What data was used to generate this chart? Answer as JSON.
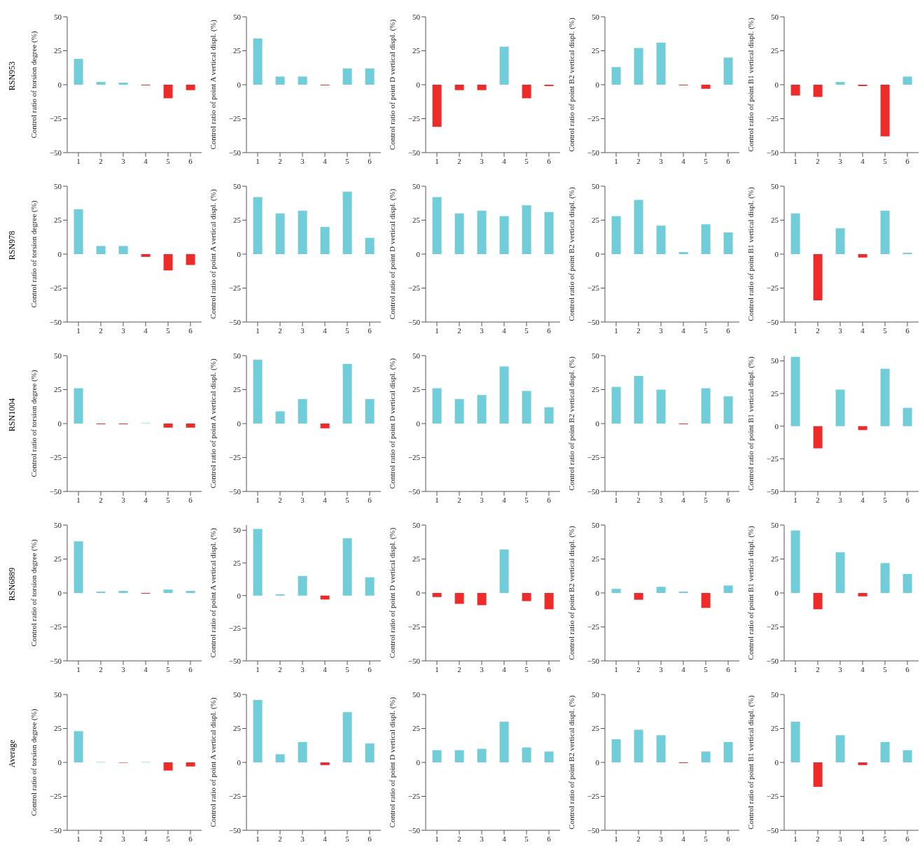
{
  "chart_data": [
    {
      "type": "bar",
      "annotations": [
        "RSN953"
      ],
      "ylabel": "Control ratio of torsion degree (%)",
      "categories": [
        "1",
        "2",
        "3",
        "4",
        "5",
        "6"
      ],
      "values": [
        19,
        2,
        1.5,
        -0.5,
        -10,
        -4
      ],
      "colors": [
        "#70cdd9",
        "#70cdd9",
        "#70cdd9",
        "#ee2b2b",
        "#ee2b2b",
        "#ee2b2b"
      ],
      "ylim": [
        -50,
        50
      ],
      "yticks": [
        -50,
        -25,
        0,
        25,
        50
      ]
    },
    {
      "type": "bar",
      "ylabel": "Control ratio of point A vertical displ. (%)",
      "categories": [
        "1",
        "2",
        "3",
        "4",
        "5",
        "6"
      ],
      "values": [
        34,
        6,
        6,
        -0.5,
        12,
        12
      ],
      "colors": [
        "#70cdd9",
        "#70cdd9",
        "#70cdd9",
        "#ee2b2b",
        "#70cdd9",
        "#70cdd9"
      ],
      "ylim": [
        -50,
        50
      ],
      "yticks": [
        -50,
        -25,
        0,
        25,
        50
      ]
    },
    {
      "type": "bar",
      "ylabel": "Control ratio of point D vertical displ. (%)",
      "categories": [
        "1",
        "2",
        "3",
        "4",
        "5",
        "6"
      ],
      "values": [
        -31,
        -4,
        -4,
        28,
        -10,
        -1
      ],
      "colors": [
        "#ee2b2b",
        "#ee2b2b",
        "#ee2b2b",
        "#70cdd9",
        "#ee2b2b",
        "#ee2b2b"
      ],
      "ylim": [
        -50,
        50
      ],
      "yticks": [
        -50,
        -25,
        0,
        25,
        50
      ]
    },
    {
      "type": "bar",
      "ylabel": "Control ratio of point B2 vertical displ. (%)",
      "categories": [
        "1",
        "2",
        "3",
        "4",
        "5",
        "6"
      ],
      "values": [
        13,
        27,
        31,
        -0.5,
        -3,
        20
      ],
      "colors": [
        "#70cdd9",
        "#70cdd9",
        "#70cdd9",
        "#ee2b2b",
        "#ee2b2b",
        "#70cdd9"
      ],
      "ylim": [
        -50,
        50
      ],
      "yticks": [
        -50,
        -25,
        0,
        25,
        50
      ]
    },
    {
      "type": "bar",
      "ylabel": "Control ratio of point B1 vertical displ. (%)",
      "categories": [
        "1",
        "2",
        "3",
        "4",
        "5",
        "6"
      ],
      "values": [
        -8,
        -9,
        2,
        -1,
        -38,
        6
      ],
      "colors": [
        "#ee2b2b",
        "#ee2b2b",
        "#70cdd9",
        "#ee2b2b",
        "#ee2b2b",
        "#70cdd9"
      ],
      "ylim": [
        -50,
        50
      ],
      "yticks": [
        -50,
        -25,
        0,
        25,
        50
      ]
    },
    {
      "type": "bar",
      "annotations": [
        "RSN978"
      ],
      "ylabel": "Control ratio of torsion degree (%)",
      "categories": [
        "1",
        "2",
        "3",
        "4",
        "5",
        "6"
      ],
      "values": [
        33,
        6,
        6,
        -2,
        -12,
        -8
      ],
      "colors": [
        "#70cdd9",
        "#70cdd9",
        "#70cdd9",
        "#ee2b2b",
        "#ee2b2b",
        "#ee2b2b"
      ],
      "ylim": [
        -50,
        50
      ],
      "yticks": [
        -50,
        -25,
        0,
        25,
        50
      ]
    },
    {
      "type": "bar",
      "ylabel": "Control ratio of point A vertical displ. (%)",
      "categories": [
        "1",
        "2",
        "3",
        "4",
        "5",
        "6"
      ],
      "values": [
        42,
        30,
        32,
        20,
        46,
        12
      ],
      "colors": [
        "#70cdd9",
        "#70cdd9",
        "#70cdd9",
        "#70cdd9",
        "#70cdd9",
        "#70cdd9"
      ],
      "ylim": [
        -50,
        50
      ],
      "yticks": [
        -50,
        -25,
        0,
        25,
        50
      ]
    },
    {
      "type": "bar",
      "ylabel": "Control ratio of point D vertical displ. (%)",
      "categories": [
        "1",
        "2",
        "3",
        "4",
        "5",
        "6"
      ],
      "values": [
        42,
        30,
        32,
        28,
        36,
        31
      ],
      "colors": [
        "#70cdd9",
        "#70cdd9",
        "#70cdd9",
        "#70cdd9",
        "#70cdd9",
        "#70cdd9"
      ],
      "ylim": [
        -50,
        50
      ],
      "yticks": [
        -50,
        -25,
        0,
        25,
        50
      ]
    },
    {
      "type": "bar",
      "ylabel": "Control ratio of point B2 vertical displ. (%)",
      "categories": [
        "1",
        "2",
        "3",
        "4",
        "5",
        "6"
      ],
      "values": [
        28,
        40,
        21,
        1.5,
        22,
        16
      ],
      "colors": [
        "#70cdd9",
        "#70cdd9",
        "#70cdd9",
        "#70cdd9",
        "#70cdd9",
        "#70cdd9"
      ],
      "ylim": [
        -50,
        50
      ],
      "yticks": [
        -50,
        -25,
        0,
        25,
        50
      ]
    },
    {
      "type": "bar",
      "ylabel": "Control ratio of point B1 vertical displ. (%)",
      "categories": [
        "1",
        "2",
        "3",
        "4",
        "5",
        "6"
      ],
      "values": [
        30,
        -34,
        19,
        -2.5,
        32,
        1
      ],
      "colors": [
        "#70cdd9",
        "#ee2b2b",
        "#70cdd9",
        "#ee2b2b",
        "#70cdd9",
        "#70cdd9"
      ],
      "ylim": [
        -50,
        50
      ],
      "yticks": [
        -50,
        -25,
        0,
        25,
        50
      ]
    },
    {
      "type": "bar",
      "annotations": [
        "RSN1004"
      ],
      "ylabel": "Control ratio of torsion degree (%)",
      "categories": [
        "1",
        "2",
        "3",
        "4",
        "5",
        "6"
      ],
      "values": [
        26,
        -0.5,
        -0.5,
        0.3,
        -3,
        -3
      ],
      "colors": [
        "#70cdd9",
        "#ee2b2b",
        "#ee2b2b",
        "#70cdd9",
        "#ee2b2b",
        "#ee2b2b"
      ],
      "ylim": [
        -50,
        50
      ],
      "yticks": [
        -50,
        -25,
        0,
        25,
        50
      ]
    },
    {
      "type": "bar",
      "ylabel": "Control ratio of point A vertical displ. (%)",
      "categories": [
        "1",
        "2",
        "3",
        "4",
        "5",
        "6"
      ],
      "values": [
        47,
        9,
        18,
        -3.5,
        44,
        18
      ],
      "colors": [
        "#70cdd9",
        "#70cdd9",
        "#70cdd9",
        "#ee2b2b",
        "#70cdd9",
        "#70cdd9"
      ],
      "ylim": [
        -50,
        50
      ],
      "yticks": [
        -50,
        -25,
        0,
        25,
        50
      ]
    },
    {
      "type": "bar",
      "ylabel": "Control ratio of point D vertical displ. (%)",
      "categories": [
        "1",
        "2",
        "3",
        "4",
        "5",
        "6"
      ],
      "values": [
        26,
        18,
        21,
        42,
        24,
        12
      ],
      "colors": [
        "#70cdd9",
        "#70cdd9",
        "#70cdd9",
        "#70cdd9",
        "#70cdd9",
        "#70cdd9"
      ],
      "ylim": [
        -50,
        50
      ],
      "yticks": [
        -50,
        -25,
        0,
        25,
        50
      ]
    },
    {
      "type": "bar",
      "ylabel": "Control ratio of point B2 vertical displ. (%)",
      "categories": [
        "1",
        "2",
        "3",
        "4",
        "5",
        "6"
      ],
      "values": [
        27,
        35,
        25,
        -0.5,
        26,
        20
      ],
      "colors": [
        "#70cdd9",
        "#70cdd9",
        "#70cdd9",
        "#ee2b2b",
        "#70cdd9",
        "#70cdd9"
      ],
      "ylim": [
        -50,
        50
      ],
      "yticks": [
        -50,
        -25,
        0,
        25,
        50
      ]
    },
    {
      "type": "bar",
      "ylabel": "Control ratio of point B1 vertical displ. (%)",
      "categories": [
        "1",
        "2",
        "3",
        "4",
        "5",
        "6"
      ],
      "values": [
        53,
        -17,
        28,
        -3,
        44,
        14
      ],
      "colors": [
        "#70cdd9",
        "#ee2b2b",
        "#70cdd9",
        "#ee2b2b",
        "#70cdd9",
        "#70cdd9"
      ],
      "ylim": [
        -50,
        54
      ],
      "yticks": [
        -50,
        -25,
        0,
        25,
        50
      ]
    },
    {
      "type": "bar",
      "annotations": [
        "RSN6889"
      ],
      "ylabel": "Control ratio of torsion degree (%)",
      "categories": [
        "1",
        "2",
        "3",
        "4",
        "5",
        "6"
      ],
      "values": [
        38,
        1,
        1.5,
        -0.5,
        2.5,
        1.5
      ],
      "colors": [
        "#70cdd9",
        "#70cdd9",
        "#70cdd9",
        "#ee2b2b",
        "#70cdd9",
        "#70cdd9"
      ],
      "ylim": [
        -50,
        50
      ],
      "yticks": [
        -50,
        -25,
        0,
        25,
        50
      ]
    },
    {
      "type": "bar",
      "ylabel": "Control ratio of point A vertical displ. (%)",
      "categories": [
        "1",
        "2",
        "3",
        "4",
        "5",
        "6"
      ],
      "values": [
        51,
        1,
        15,
        -3,
        44,
        14
      ],
      "colors": [
        "#70cdd9",
        "#70cdd9",
        "#70cdd9",
        "#ee2b2b",
        "#70cdd9",
        "#70cdd9"
      ],
      "ylim": [
        -50,
        54
      ],
      "yticks": [
        -50,
        -25,
        0,
        25,
        50
      ]
    },
    {
      "type": "bar",
      "ylabel": "Control ratio of point D vertical displ. (%)",
      "categories": [
        "1",
        "2",
        "3",
        "4",
        "5",
        "6"
      ],
      "values": [
        -3,
        -8,
        -9,
        32,
        -6,
        -12
      ],
      "colors": [
        "#ee2b2b",
        "#ee2b2b",
        "#ee2b2b",
        "#70cdd9",
        "#ee2b2b",
        "#ee2b2b"
      ],
      "ylim": [
        -50,
        50
      ],
      "yticks": [
        -50,
        -25,
        0,
        25,
        50
      ]
    },
    {
      "type": "bar",
      "ylabel": "Control ratio of point B2 vertical displ. (%)",
      "categories": [
        "1",
        "2",
        "3",
        "4",
        "5",
        "6"
      ],
      "values": [
        3,
        -5,
        4.5,
        1,
        -11,
        5.5
      ],
      "colors": [
        "#70cdd9",
        "#ee2b2b",
        "#70cdd9",
        "#70cdd9",
        "#ee2b2b",
        "#70cdd9"
      ],
      "ylim": [
        -50,
        50
      ],
      "yticks": [
        -50,
        -25,
        0,
        25,
        50
      ]
    },
    {
      "type": "bar",
      "ylabel": "Control ratio of point B1 vertical displ. (%)",
      "categories": [
        "1",
        "2",
        "3",
        "4",
        "5",
        "6"
      ],
      "values": [
        46,
        -12,
        30,
        -2.5,
        22,
        14
      ],
      "colors": [
        "#70cdd9",
        "#ee2b2b",
        "#70cdd9",
        "#ee2b2b",
        "#70cdd9",
        "#70cdd9"
      ],
      "ylim": [
        -50,
        50
      ],
      "yticks": [
        -50,
        -25,
        0,
        25,
        50
      ]
    },
    {
      "type": "bar",
      "annotations": [
        "Average"
      ],
      "ylabel": "Control ratio of torsion degree (%)",
      "categories": [
        "1",
        "2",
        "3",
        "4",
        "5",
        "6"
      ],
      "values": [
        23,
        0.3,
        -0.3,
        0.3,
        -6,
        -3
      ],
      "colors": [
        "#70cdd9",
        "#70cdd9",
        "#ee2b2b",
        "#70cdd9",
        "#ee2b2b",
        "#ee2b2b"
      ],
      "ylim": [
        -50,
        50
      ],
      "yticks": [
        -50,
        -25,
        0,
        25,
        50
      ]
    },
    {
      "type": "bar",
      "ylabel": "Control ratio of point A vertical displ. (%)",
      "categories": [
        "1",
        "2",
        "3",
        "4",
        "5",
        "6"
      ],
      "values": [
        46,
        6,
        15,
        -2,
        37,
        14
      ],
      "colors": [
        "#70cdd9",
        "#70cdd9",
        "#70cdd9",
        "#ee2b2b",
        "#70cdd9",
        "#70cdd9"
      ],
      "ylim": [
        -50,
        50
      ],
      "yticks": [
        -50,
        -25,
        0,
        25,
        50
      ]
    },
    {
      "type": "bar",
      "ylabel": "Control ratio of point D vertical displ. (%)",
      "categories": [
        "1",
        "2",
        "3",
        "4",
        "5",
        "6"
      ],
      "values": [
        9,
        9,
        10,
        30,
        11,
        8
      ],
      "colors": [
        "#70cdd9",
        "#70cdd9",
        "#70cdd9",
        "#70cdd9",
        "#70cdd9",
        "#70cdd9"
      ],
      "ylim": [
        -50,
        50
      ],
      "yticks": [
        -50,
        -25,
        0,
        25,
        50
      ]
    },
    {
      "type": "bar",
      "ylabel": "Control ratio of point B2 vertical displ. (%)",
      "categories": [
        "1",
        "2",
        "3",
        "4",
        "5",
        "6"
      ],
      "values": [
        17,
        24,
        20,
        -0.5,
        8,
        15
      ],
      "colors": [
        "#70cdd9",
        "#70cdd9",
        "#70cdd9",
        "#ee2b2b",
        "#70cdd9",
        "#70cdd9"
      ],
      "ylim": [
        -50,
        50
      ],
      "yticks": [
        -50,
        -25,
        0,
        25,
        50
      ]
    },
    {
      "type": "bar",
      "ylabel": "Control ratio of point B1 vertical displ. (%)",
      "categories": [
        "1",
        "2",
        "3",
        "4",
        "5",
        "6"
      ],
      "values": [
        30,
        -18,
        20,
        -2,
        15,
        9
      ],
      "colors": [
        "#70cdd9",
        "#ee2b2b",
        "#70cdd9",
        "#ee2b2b",
        "#70cdd9",
        "#70cdd9"
      ],
      "ylim": [
        -50,
        50
      ],
      "yticks": [
        -50,
        -25,
        0,
        25,
        50
      ]
    }
  ]
}
